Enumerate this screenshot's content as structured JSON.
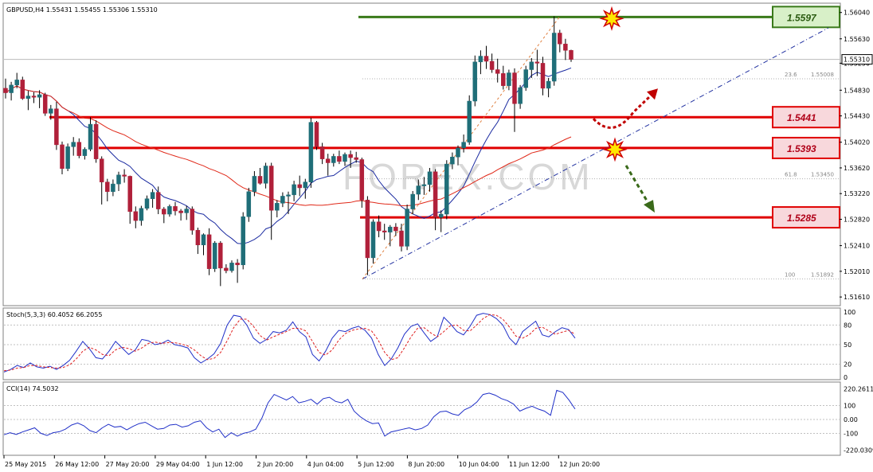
{
  "header": {
    "symbol_line": "GBPUSD,H4  1.55431 1.55455 1.55306 1.55310",
    "stoch_label": "Stoch(5,3,3) 60.4052 66.2055",
    "cci_label": "CCI(14) 74.5032"
  },
  "watermark": "FOREX.COM",
  "colors": {
    "bull": "#1f6e78",
    "bear": "#b0203a",
    "ma_fast": "#1a2aa0",
    "ma_slow": "#e02818",
    "level_red": "#e00000",
    "level_green": "#3a7a1a",
    "box_red_fill": "#f8d8dc",
    "box_green_fill": "#d8f0c8"
  },
  "chart_data": {
    "type": "candlestick",
    "symbol": "GBPUSD",
    "timeframe": "H4",
    "last_price": "1.55310",
    "price_axis": {
      "ticks": [
        "1.56040",
        "1.55630",
        "1.55250",
        "1.54830",
        "1.54430",
        "1.54020",
        "1.53620",
        "1.53220",
        "1.52820",
        "1.52410",
        "1.52010",
        "1.51610"
      ],
      "range": [
        1.515,
        1.5616
      ]
    },
    "time_axis_labels": [
      "25 May 2015",
      "26 May 12:00",
      "27 May 20:00",
      "29 May 04:00",
      "1 Jun 12:00",
      "2 Jun 20:00",
      "4 Jun 04:00",
      "5 Jun 12:00",
      "8 Jun 20:00",
      "10 Jun 04:00",
      "11 Jun 12:00",
      "12 Jun 20:00"
    ],
    "levels": [
      {
        "price": 1.5597,
        "label": "1.5597",
        "color": "green"
      },
      {
        "price": 1.5441,
        "label": "1.5441",
        "color": "red"
      },
      {
        "price": 1.5393,
        "label": "1.5393",
        "color": "red"
      },
      {
        "price": 1.5285,
        "label": "1.5285",
        "color": "red"
      }
    ],
    "fibonacci": [
      {
        "label": "23.6",
        "value": "1.55008"
      },
      {
        "label": "61.8",
        "value": "1.53450"
      },
      {
        "label": "100",
        "value": "1.51892"
      }
    ],
    "candles": [
      [
        1.5486,
        1.5501,
        1.547,
        1.5479
      ],
      [
        1.5479,
        1.5496,
        1.5467,
        1.5491
      ],
      [
        1.5491,
        1.551,
        1.5486,
        1.5499
      ],
      [
        1.5499,
        1.5504,
        1.5468,
        1.547
      ],
      [
        1.547,
        1.5482,
        1.5452,
        1.5474
      ],
      [
        1.5474,
        1.548,
        1.5463,
        1.5472
      ],
      [
        1.5472,
        1.5483,
        1.5455,
        1.5476
      ],
      [
        1.5476,
        1.5479,
        1.5443,
        1.5447
      ],
      [
        1.5447,
        1.546,
        1.5437,
        1.5454
      ],
      [
        1.5454,
        1.5465,
        1.539,
        1.5398
      ],
      [
        1.5398,
        1.5403,
        1.5352,
        1.5361
      ],
      [
        1.5361,
        1.54,
        1.5357,
        1.5395
      ],
      [
        1.5395,
        1.541,
        1.5381,
        1.5402
      ],
      [
        1.5402,
        1.5408,
        1.5377,
        1.5381
      ],
      [
        1.5381,
        1.5394,
        1.5375,
        1.5391
      ],
      [
        1.5391,
        1.5441,
        1.5388,
        1.543
      ],
      [
        1.543,
        1.5436,
        1.537,
        1.5376
      ],
      [
        1.5376,
        1.538,
        1.5305,
        1.534
      ],
      [
        1.534,
        1.5345,
        1.531,
        1.5325
      ],
      [
        1.5325,
        1.5344,
        1.5318,
        1.5337
      ],
      [
        1.5337,
        1.5356,
        1.5326,
        1.5351
      ],
      [
        1.5351,
        1.536,
        1.5339,
        1.5349
      ],
      [
        1.5349,
        1.535,
        1.5275,
        1.5294
      ],
      [
        1.5294,
        1.5302,
        1.5268,
        1.528
      ],
      [
        1.528,
        1.5303,
        1.5272,
        1.5299
      ],
      [
        1.5299,
        1.5319,
        1.5296,
        1.5314
      ],
      [
        1.5314,
        1.5329,
        1.53,
        1.5324
      ],
      [
        1.5324,
        1.5333,
        1.529,
        1.5298
      ],
      [
        1.5298,
        1.5301,
        1.5276,
        1.529
      ],
      [
        1.529,
        1.5305,
        1.5286,
        1.5302
      ],
      [
        1.5302,
        1.5309,
        1.5288,
        1.5295
      ],
      [
        1.5295,
        1.5298,
        1.528,
        1.5292
      ],
      [
        1.5292,
        1.5303,
        1.5281,
        1.5298
      ],
      [
        1.5298,
        1.5302,
        1.5258,
        1.5265
      ],
      [
        1.5265,
        1.5269,
        1.5228,
        1.5242
      ],
      [
        1.5242,
        1.526,
        1.5226,
        1.5258
      ],
      [
        1.5258,
        1.5268,
        1.5195,
        1.5205
      ],
      [
        1.5205,
        1.5248,
        1.52,
        1.5245
      ],
      [
        1.5245,
        1.5248,
        1.5178,
        1.5206
      ],
      [
        1.5206,
        1.5212,
        1.5198,
        1.5202
      ],
      [
        1.5202,
        1.5218,
        1.5199,
        1.5214
      ],
      [
        1.5214,
        1.522,
        1.5183,
        1.5211
      ],
      [
        1.5211,
        1.5293,
        1.5204,
        1.5286
      ],
      [
        1.5286,
        1.5331,
        1.5278,
        1.5325
      ],
      [
        1.5325,
        1.5357,
        1.5318,
        1.5349
      ],
      [
        1.5349,
        1.5362,
        1.5336,
        1.5338
      ],
      [
        1.5338,
        1.537,
        1.533,
        1.5365
      ],
      [
        1.5365,
        1.537,
        1.525,
        1.5296
      ],
      [
        1.5296,
        1.5312,
        1.5285,
        1.5307
      ],
      [
        1.5307,
        1.5324,
        1.5301,
        1.5318
      ],
      [
        1.5318,
        1.5325,
        1.529,
        1.532
      ],
      [
        1.532,
        1.5342,
        1.531,
        1.5336
      ],
      [
        1.5336,
        1.535,
        1.5318,
        1.5331
      ],
      [
        1.5331,
        1.5345,
        1.5314,
        1.534
      ],
      [
        1.534,
        1.544,
        1.5331,
        1.5433
      ],
      [
        1.5433,
        1.5435,
        1.539,
        1.5395
      ],
      [
        1.5395,
        1.5401,
        1.5368,
        1.5376
      ],
      [
        1.5376,
        1.5384,
        1.535,
        1.537
      ],
      [
        1.537,
        1.5384,
        1.5364,
        1.538
      ],
      [
        1.538,
        1.5389,
        1.5368,
        1.5372
      ],
      [
        1.5372,
        1.5386,
        1.5365,
        1.5383
      ],
      [
        1.5383,
        1.5389,
        1.5362,
        1.5378
      ],
      [
        1.5378,
        1.5387,
        1.537,
        1.5375
      ],
      [
        1.5375,
        1.5378,
        1.53,
        1.5312
      ],
      [
        1.5312,
        1.5318,
        1.5195,
        1.5222
      ],
      [
        1.5222,
        1.5282,
        1.5213,
        1.5278
      ],
      [
        1.5278,
        1.5288,
        1.5254,
        1.5264
      ],
      [
        1.5264,
        1.5275,
        1.525,
        1.5262
      ],
      [
        1.5262,
        1.5273,
        1.524,
        1.527
      ],
      [
        1.527,
        1.5276,
        1.5256,
        1.5264
      ],
      [
        1.5264,
        1.5275,
        1.5232,
        1.524
      ],
      [
        1.524,
        1.5305,
        1.5234,
        1.5298
      ],
      [
        1.5298,
        1.5326,
        1.529,
        1.5321
      ],
      [
        1.5321,
        1.5344,
        1.5312,
        1.5334
      ],
      [
        1.5334,
        1.5348,
        1.532,
        1.5336
      ],
      [
        1.5336,
        1.5362,
        1.5325,
        1.5356
      ],
      [
        1.5356,
        1.536,
        1.5265,
        1.5285
      ],
      [
        1.5285,
        1.5296,
        1.5262,
        1.529
      ],
      [
        1.529,
        1.5374,
        1.5282,
        1.5368
      ],
      [
        1.5368,
        1.5386,
        1.536,
        1.5379
      ],
      [
        1.5379,
        1.5397,
        1.5366,
        1.5393
      ],
      [
        1.5393,
        1.5414,
        1.5386,
        1.5402
      ],
      [
        1.5402,
        1.5475,
        1.5398,
        1.5466
      ],
      [
        1.5466,
        1.5537,
        1.5458,
        1.5527
      ],
      [
        1.5527,
        1.5545,
        1.5508,
        1.5536
      ],
      [
        1.5536,
        1.5552,
        1.5516,
        1.5528
      ],
      [
        1.5528,
        1.554,
        1.551,
        1.5515
      ],
      [
        1.5515,
        1.5532,
        1.5495,
        1.5509
      ],
      [
        1.5509,
        1.5521,
        1.5484,
        1.549
      ],
      [
        1.549,
        1.5515,
        1.5483,
        1.551
      ],
      [
        1.551,
        1.5517,
        1.5418,
        1.5462
      ],
      [
        1.5462,
        1.5491,
        1.5454,
        1.5487
      ],
      [
        1.5487,
        1.5521,
        1.5482,
        1.5515
      ],
      [
        1.5515,
        1.5533,
        1.5502,
        1.5527
      ],
      [
        1.5527,
        1.5546,
        1.5505,
        1.5525
      ],
      [
        1.5525,
        1.5535,
        1.5475,
        1.5486
      ],
      [
        1.5486,
        1.5502,
        1.5472,
        1.5497
      ],
      [
        1.5497,
        1.5598,
        1.549,
        1.5572
      ],
      [
        1.5572,
        1.5577,
        1.5542,
        1.5555
      ],
      [
        1.5555,
        1.5563,
        1.553,
        1.5545
      ],
      [
        1.5545,
        1.5546,
        1.5527,
        1.5531
      ]
    ],
    "stochastic": {
      "label": "Stoch(5,3,3)",
      "main": 60.4052,
      "signal": 66.2055,
      "levels": [
        "100",
        "80",
        "50",
        "20",
        "0"
      ],
      "k": [
        8,
        12,
        18,
        15,
        22,
        16,
        14,
        17,
        12,
        18,
        26,
        40,
        55,
        44,
        30,
        28,
        40,
        55,
        45,
        35,
        42,
        58,
        56,
        50,
        52,
        57,
        50,
        48,
        45,
        30,
        22,
        28,
        36,
        52,
        80,
        95,
        93,
        80,
        60,
        52,
        58,
        70,
        68,
        72,
        85,
        70,
        62,
        35,
        25,
        40,
        60,
        72,
        70,
        75,
        78,
        72,
        60,
        35,
        18,
        28,
        45,
        66,
        78,
        82,
        68,
        55,
        62,
        92,
        82,
        70,
        65,
        78,
        95,
        98,
        96,
        90,
        80,
        60,
        50,
        70,
        78,
        86,
        65,
        62,
        70,
        76,
        73,
        60
      ],
      "d": [
        10,
        11,
        14,
        15,
        18,
        18,
        16,
        15,
        14,
        15,
        19,
        28,
        40,
        46,
        42,
        35,
        33,
        42,
        46,
        44,
        40,
        45,
        52,
        54,
        52,
        53,
        53,
        51,
        48,
        42,
        33,
        27,
        29,
        38,
        56,
        76,
        89,
        89,
        78,
        64,
        57,
        62,
        66,
        70,
        75,
        75,
        71,
        55,
        38,
        34,
        42,
        57,
        67,
        72,
        74,
        75,
        71,
        57,
        38,
        27,
        30,
        45,
        62,
        75,
        76,
        68,
        62,
        70,
        79,
        80,
        72,
        71,
        80,
        90,
        96,
        95,
        89,
        77,
        63,
        60,
        65,
        75,
        77,
        71,
        66,
        69,
        72,
        66
      ]
    },
    "cci": {
      "label": "CCI(14)",
      "value": 74.5032,
      "levels": [
        "220.2611",
        "100",
        "0.00",
        "-100",
        "-220.0309"
      ],
      "values": [
        -110,
        -95,
        -108,
        -90,
        -75,
        -60,
        -100,
        -115,
        -95,
        -88,
        -70,
        -40,
        -25,
        -45,
        -80,
        -95,
        -60,
        -35,
        -55,
        -50,
        -75,
        -50,
        -30,
        -20,
        -45,
        -70,
        -65,
        -40,
        -35,
        -55,
        -45,
        -20,
        -10,
        -60,
        -90,
        -70,
        -130,
        -95,
        -120,
        -100,
        -90,
        -70,
        10,
        120,
        180,
        160,
        140,
        165,
        120,
        130,
        145,
        110,
        150,
        160,
        130,
        120,
        145,
        60,
        20,
        -10,
        -30,
        -25,
        -120,
        -90,
        -80,
        -70,
        -60,
        -75,
        -65,
        -40,
        20,
        55,
        60,
        40,
        30,
        70,
        90,
        125,
        180,
        190,
        175,
        150,
        135,
        110,
        60,
        80,
        95,
        75,
        60,
        30,
        210,
        195,
        140,
        75
      ]
    }
  }
}
